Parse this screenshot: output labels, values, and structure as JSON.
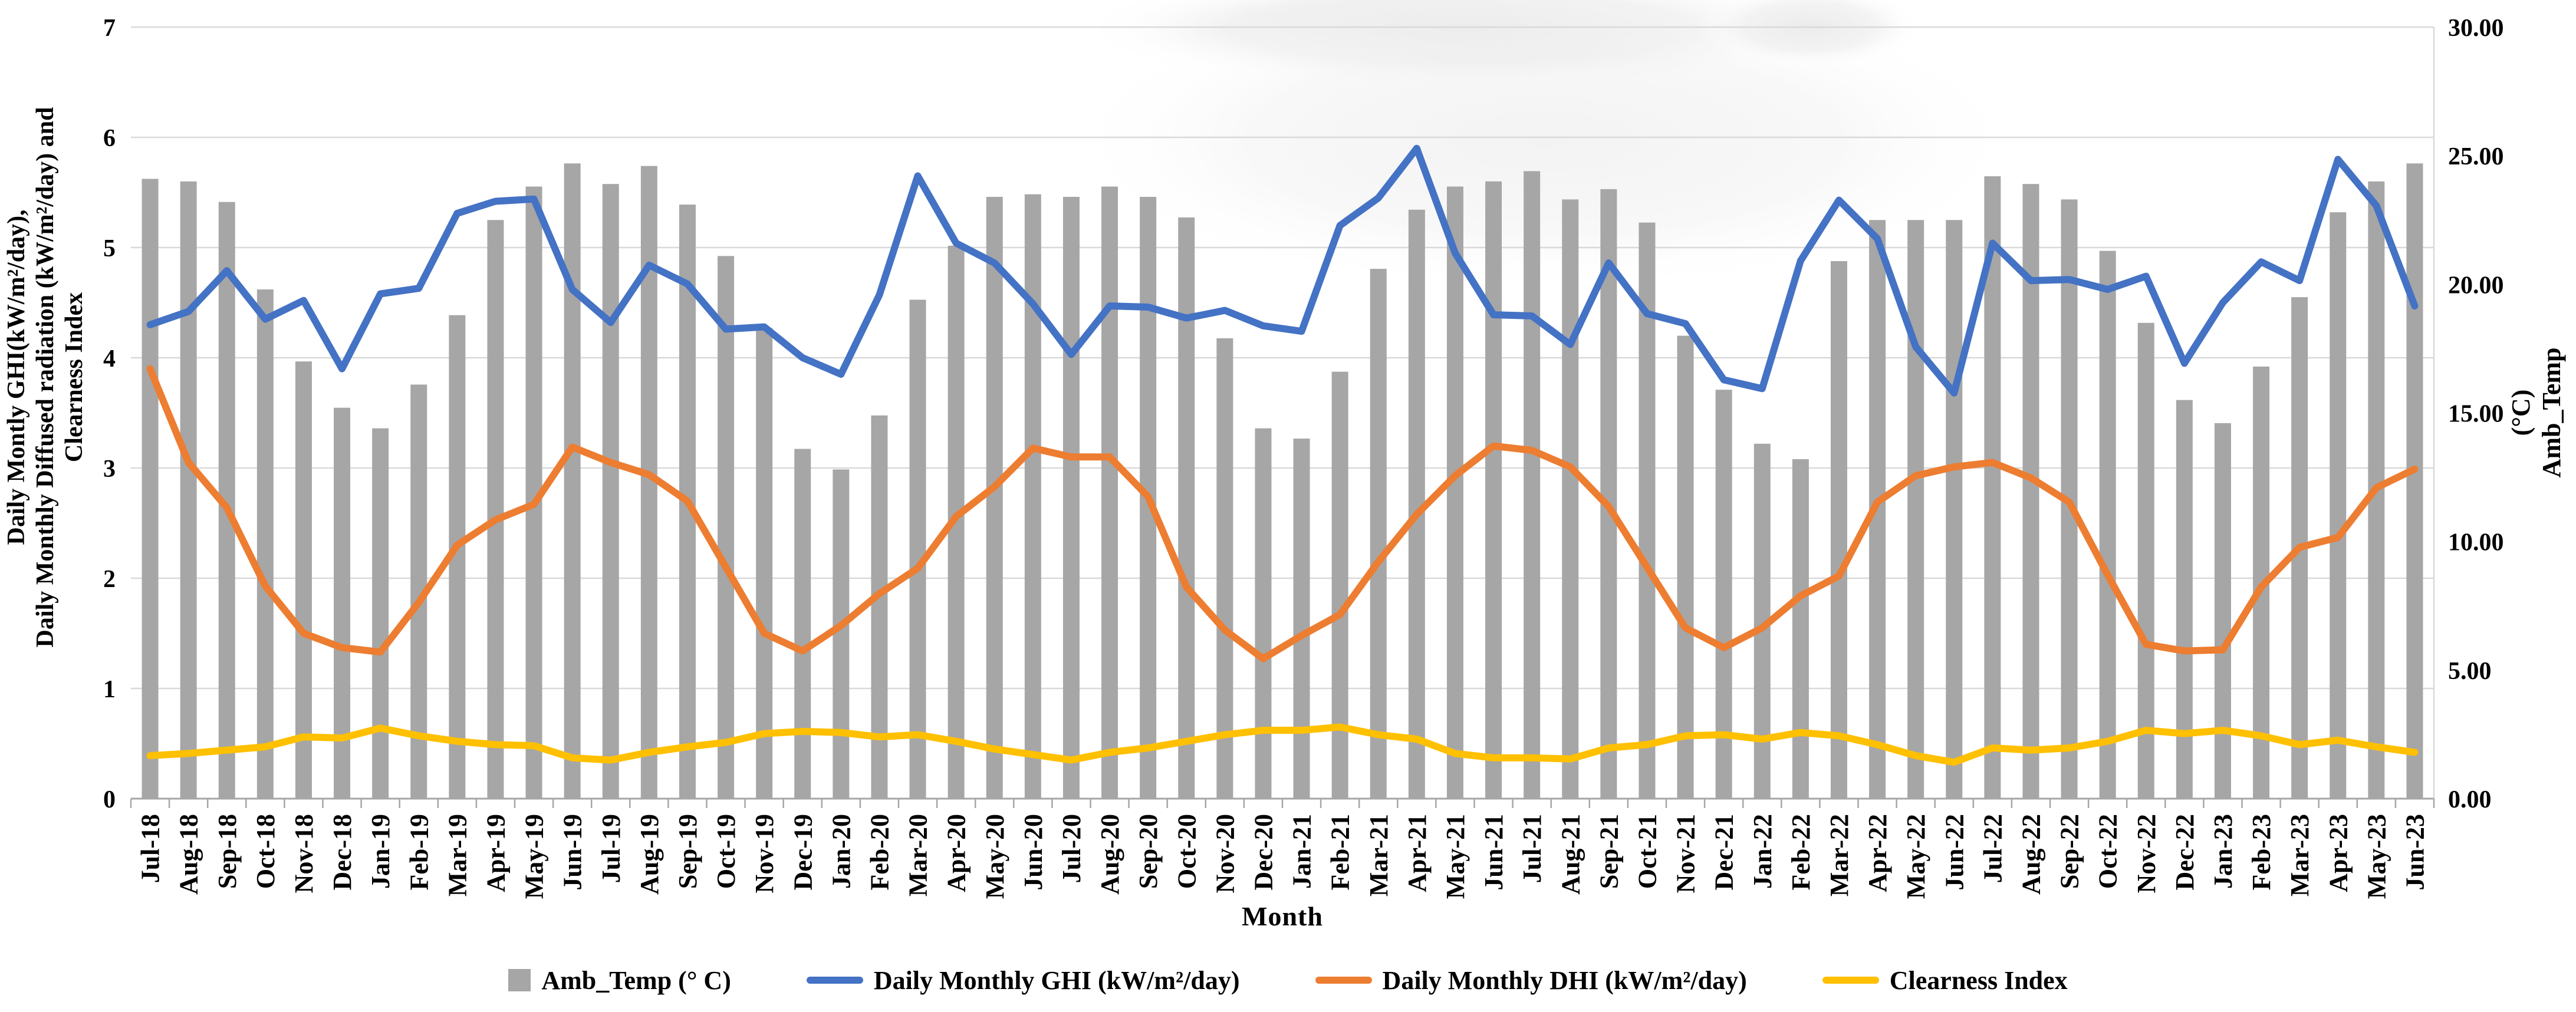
{
  "figure": {
    "background": "#ffffff"
  },
  "colors": {
    "bar": "#a6a6a6",
    "ghi": "#4472c4",
    "dhi": "#ed7d31",
    "clearness": "#ffc000",
    "gridline": "#d9d9d9",
    "axis": "#a6a6a6"
  },
  "y_axis_left": {
    "title_lines": [
      "Daily Montly GHI(kW/m²/day),",
      "Daily Monthly Diffused radiation (kW/m²/day) and",
      "Clearness Index"
    ],
    "ticks": [
      "0",
      "1",
      "2",
      "3",
      "4",
      "5",
      "6",
      "7"
    ],
    "min": 0,
    "max": 7
  },
  "y_axis_right": {
    "title_lines": [
      "(°C)",
      "Amb_Temp"
    ],
    "ticks": [
      "0.00",
      "5.00",
      "10.00",
      "15.00",
      "20.00",
      "25.00",
      "30.00"
    ],
    "min": 0,
    "max": 30
  },
  "x_axis": {
    "title": "Month"
  },
  "legend": [
    {
      "label": "Amb_Temp (° C)",
      "marker": "square",
      "color": "#a6a6a6"
    },
    {
      "label": "Daily Monthly GHI (kW/m²/day)",
      "marker": "line",
      "color": "#4472c4"
    },
    {
      "label": "Daily Monthly DHI (kW/m²/day)",
      "marker": "line",
      "color": "#ed7d31"
    },
    {
      "label": "Clearness Index",
      "marker": "line",
      "color": "#ffc000"
    }
  ],
  "chart_data": {
    "type": "combo",
    "grid": true,
    "legend_position": "bottom",
    "left_ylim": [
      0,
      7
    ],
    "right_ylim": [
      0,
      30
    ],
    "categories": [
      "Jul-18",
      "Aug-18",
      "Sep-18",
      "Oct-18",
      "Nov-18",
      "Dec-18",
      "Jan-19",
      "Feb-19",
      "Mar-19",
      "Apr-19",
      "May-19",
      "Jun-19",
      "Jul-19",
      "Aug-19",
      "Sep-19",
      "Oct-19",
      "Nov-19",
      "Dec-19",
      "Jan-20",
      "Feb-20",
      "Mar-20",
      "Apr-20",
      "May-20",
      "Jun-20",
      "Jul-20",
      "Aug-20",
      "Sep-20",
      "Oct-20",
      "Nov-20",
      "Dec-20",
      "Jan-21",
      "Feb-21",
      "Mar-21",
      "Apr-21",
      "May-21",
      "Jun-21",
      "Jul-21",
      "Aug-21",
      "Sep-21",
      "Oct-21",
      "Nov-21",
      "Dec-21",
      "Jan-22",
      "Feb-22",
      "Mar-22",
      "Apr-22",
      "May-22",
      "Jun-22",
      "Jul-22",
      "Aug-22",
      "Sep-22",
      "Oct-22",
      "Nov-22",
      "Dec-22",
      "Jan-23",
      "Feb-23",
      "Mar-23",
      "Apr-23",
      "May-23",
      "Jun-23"
    ],
    "series": [
      {
        "name": "Amb_Temp (° C)",
        "type": "bar",
        "axis": "right",
        "color": "#a6a6a6",
        "values": [
          24.1,
          24.0,
          23.2,
          19.8,
          17.0,
          15.2,
          14.4,
          16.1,
          18.8,
          22.5,
          23.8,
          24.7,
          23.9,
          24.6,
          23.1,
          21.1,
          18.3,
          13.6,
          12.8,
          14.9,
          19.4,
          21.5,
          23.4,
          23.5,
          23.4,
          23.8,
          23.4,
          22.6,
          17.9,
          14.4,
          14.0,
          16.6,
          20.6,
          22.9,
          23.8,
          24.0,
          24.4,
          23.3,
          23.7,
          22.4,
          18.0,
          15.9,
          13.8,
          13.2,
          20.9,
          22.5,
          22.5,
          22.5,
          24.2,
          23.9,
          23.3,
          21.3,
          18.5,
          15.5,
          14.6,
          16.8,
          19.5,
          22.8,
          24.0,
          24.7
        ]
      },
      {
        "name": "Daily Monthly GHI (kW/m²/day)",
        "type": "line",
        "axis": "left",
        "color": "#4472c4",
        "values": [
          4.3,
          4.42,
          4.79,
          4.35,
          4.52,
          3.9,
          4.58,
          4.63,
          5.31,
          5.42,
          5.44,
          4.62,
          4.32,
          4.84,
          4.67,
          4.26,
          4.28,
          4.0,
          3.85,
          4.57,
          5.65,
          5.04,
          4.86,
          4.49,
          4.03,
          4.47,
          4.46,
          4.36,
          4.43,
          4.29,
          4.24,
          5.2,
          5.45,
          5.9,
          4.95,
          4.39,
          4.38,
          4.12,
          4.86,
          4.4,
          4.31,
          3.8,
          3.72,
          4.88,
          5.43,
          5.08,
          4.1,
          3.68,
          5.04,
          4.7,
          4.71,
          4.62,
          4.74,
          3.95,
          4.5,
          4.87,
          4.7,
          5.8,
          5.38,
          4.47
        ]
      },
      {
        "name": "Daily Monthly DHI (kW/m²/day)",
        "type": "line",
        "axis": "left",
        "color": "#ed7d31",
        "values": [
          3.9,
          3.05,
          2.64,
          1.93,
          1.5,
          1.37,
          1.33,
          1.78,
          2.3,
          2.53,
          2.67,
          3.19,
          3.05,
          2.94,
          2.7,
          2.1,
          1.5,
          1.34,
          1.57,
          1.86,
          2.09,
          2.56,
          2.83,
          3.18,
          3.1,
          3.1,
          2.74,
          1.92,
          1.53,
          1.27,
          1.48,
          1.67,
          2.15,
          2.58,
          2.93,
          3.2,
          3.16,
          3.01,
          2.65,
          2.1,
          1.55,
          1.37,
          1.55,
          1.84,
          2.02,
          2.69,
          2.93,
          3.01,
          3.05,
          2.91,
          2.69,
          2.03,
          1.4,
          1.34,
          1.35,
          1.92,
          2.28,
          2.37,
          2.82,
          2.99
        ]
      },
      {
        "name": "Clearness Index",
        "type": "line",
        "axis": "left",
        "color": "#ffc000",
        "values": [
          0.39,
          0.41,
          0.44,
          0.47,
          0.56,
          0.55,
          0.64,
          0.57,
          0.52,
          0.49,
          0.48,
          0.37,
          0.35,
          0.42,
          0.47,
          0.51,
          0.59,
          0.61,
          0.6,
          0.56,
          0.58,
          0.52,
          0.45,
          0.4,
          0.35,
          0.42,
          0.46,
          0.52,
          0.58,
          0.62,
          0.62,
          0.65,
          0.58,
          0.54,
          0.41,
          0.37,
          0.37,
          0.36,
          0.46,
          0.49,
          0.57,
          0.58,
          0.54,
          0.6,
          0.57,
          0.49,
          0.39,
          0.33,
          0.46,
          0.44,
          0.46,
          0.52,
          0.62,
          0.59,
          0.62,
          0.57,
          0.49,
          0.53,
          0.47,
          0.42
        ]
      }
    ]
  }
}
